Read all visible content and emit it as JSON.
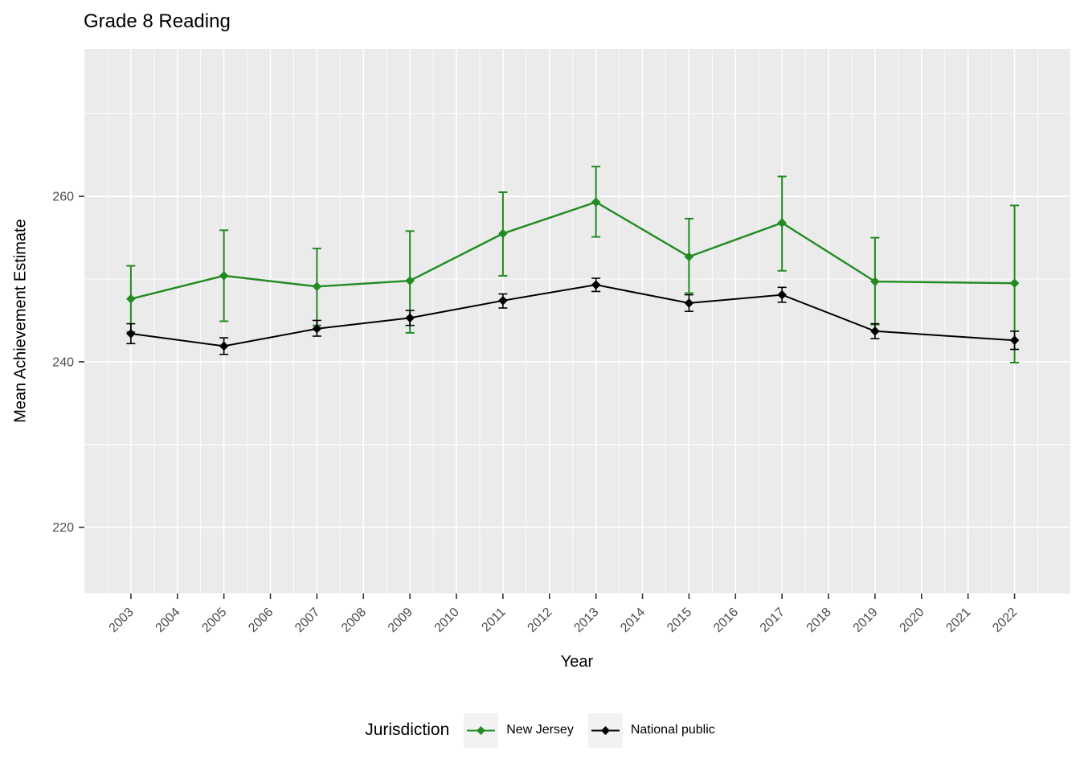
{
  "chart_data": {
    "type": "line",
    "title": "Grade 8 Reading",
    "xlabel": "Year",
    "ylabel": "Mean Achievement Estimate",
    "legend": {
      "title": "Jurisdiction",
      "position": "bottom"
    },
    "grid": true,
    "x_ticks": [
      2003,
      2004,
      2005,
      2006,
      2007,
      2008,
      2009,
      2010,
      2011,
      2012,
      2013,
      2014,
      2015,
      2016,
      2017,
      2018,
      2019,
      2020,
      2021,
      2022
    ],
    "y_ticks": [
      220,
      240,
      260
    ],
    "x_range": [
      2002.0,
      2023.2
    ],
    "y_range": [
      212.0,
      277.8
    ],
    "series": [
      {
        "name": "New Jersey",
        "color": "#228B22",
        "marker": "diamond",
        "points": [
          {
            "year": 2003,
            "value": 247.6,
            "lower": 243.6,
            "upper": 251.6
          },
          {
            "year": 2005,
            "value": 250.4,
            "lower": 244.9,
            "upper": 255.9
          },
          {
            "year": 2007,
            "value": 249.1,
            "lower": 244.4,
            "upper": 253.7
          },
          {
            "year": 2009,
            "value": 249.8,
            "lower": 243.5,
            "upper": 255.8
          },
          {
            "year": 2011,
            "value": 255.5,
            "lower": 250.4,
            "upper": 260.5
          },
          {
            "year": 2013,
            "value": 259.3,
            "lower": 255.1,
            "upper": 263.6
          },
          {
            "year": 2015,
            "value": 252.7,
            "lower": 248.3,
            "upper": 257.3
          },
          {
            "year": 2017,
            "value": 256.8,
            "lower": 251.0,
            "upper": 262.4
          },
          {
            "year": 2019,
            "value": 249.7,
            "lower": 244.5,
            "upper": 255.0
          },
          {
            "year": 2022,
            "value": 249.5,
            "lower": 239.9,
            "upper": 258.9
          }
        ]
      },
      {
        "name": "National public",
        "color": "#000000",
        "marker": "diamond",
        "points": [
          {
            "year": 2003,
            "value": 243.4,
            "lower": 242.2,
            "upper": 244.6
          },
          {
            "year": 2005,
            "value": 241.9,
            "lower": 240.9,
            "upper": 242.9
          },
          {
            "year": 2007,
            "value": 244.0,
            "lower": 243.1,
            "upper": 245.0
          },
          {
            "year": 2009,
            "value": 245.3,
            "lower": 244.4,
            "upper": 246.2
          },
          {
            "year": 2011,
            "value": 247.4,
            "lower": 246.5,
            "upper": 248.2
          },
          {
            "year": 2013,
            "value": 249.3,
            "lower": 248.5,
            "upper": 250.1
          },
          {
            "year": 2015,
            "value": 247.1,
            "lower": 246.1,
            "upper": 248.1
          },
          {
            "year": 2017,
            "value": 248.1,
            "lower": 247.2,
            "upper": 249.0
          },
          {
            "year": 2019,
            "value": 243.7,
            "lower": 242.8,
            "upper": 244.6
          },
          {
            "year": 2022,
            "value": 242.6,
            "lower": 241.5,
            "upper": 243.7
          }
        ]
      }
    ]
  },
  "theme": {
    "background": "#FFFFFF",
    "panel_bg": "#EBEBEB",
    "grid_color": "#FFFFFF",
    "tick_mark_color": "#333333",
    "tick_label_color": "#4D4D4D",
    "legend_key_bg": "#F2F2F2"
  }
}
